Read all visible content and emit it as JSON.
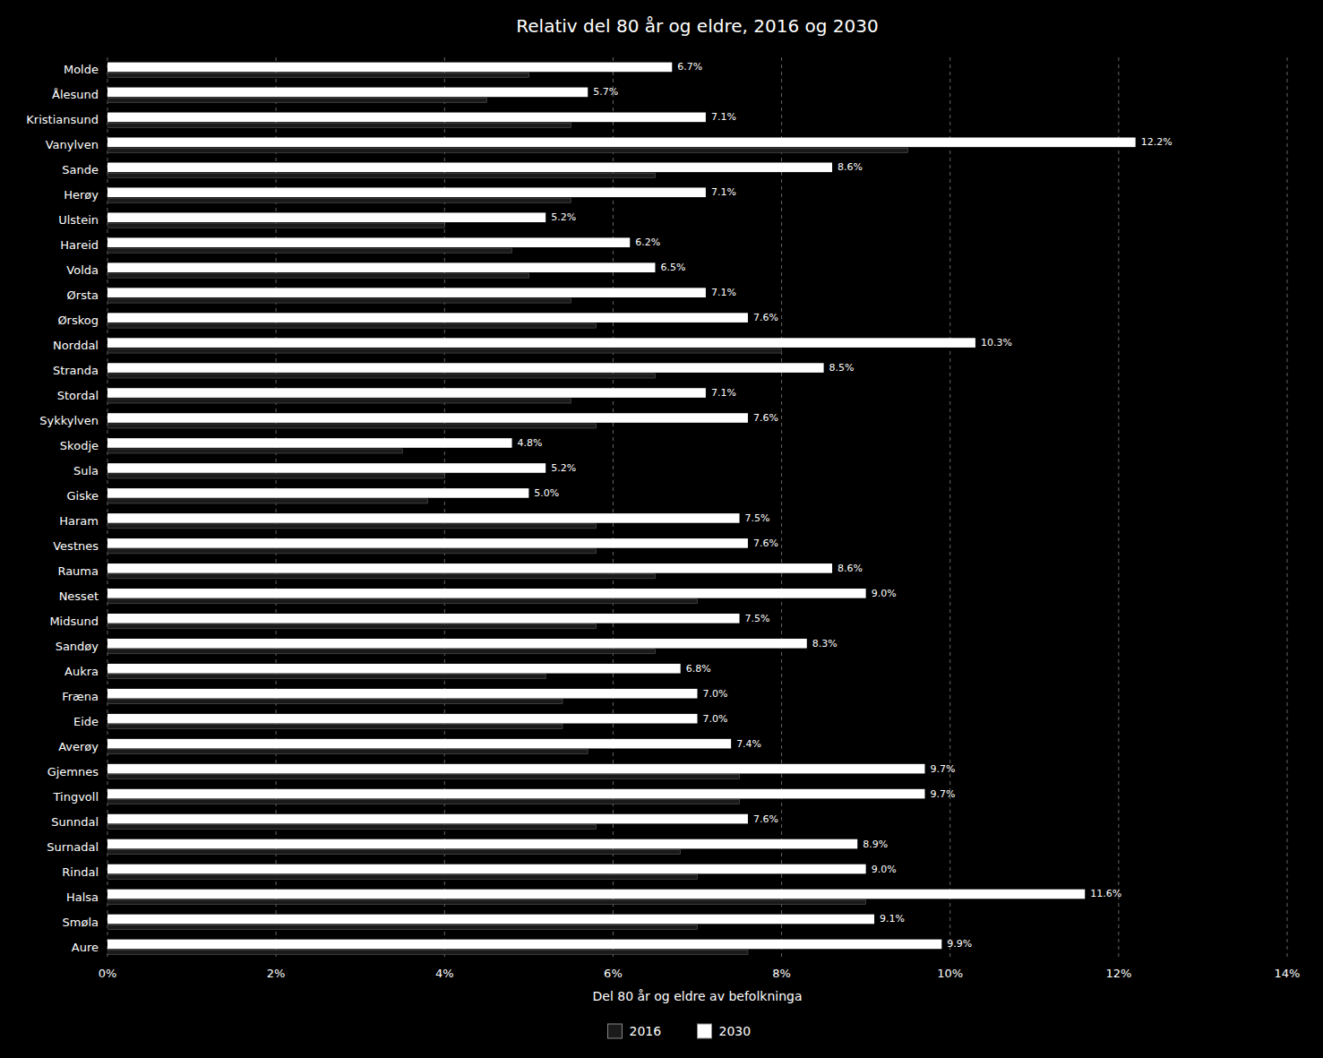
{
  "chart_data": {
    "type": "bar",
    "orientation": "horizontal",
    "title": "Relativ del 80 år og eldre, 2016 og 2030",
    "xlabel": "Del 80 år og eldre av befolkninga",
    "categories": [
      "Molde",
      "Ålesund",
      "Kristiansund",
      "Vanylven",
      "Sande",
      "Herøy",
      "Ulstein",
      "Hareid",
      "Volda",
      "Ørsta",
      "Ørskog",
      "Norddal",
      "Stranda",
      "Stordal",
      "Sykkylven",
      "Skodje",
      "Sula",
      "Giske",
      "Haram",
      "Vestnes",
      "Rauma",
      "Nesset",
      "Midsund",
      "Sandøy",
      "Aukra",
      "Fræna",
      "Eide",
      "Averøy",
      "Gjemnes",
      "Tingvoll",
      "Sunndal",
      "Surnadal",
      "Rindal",
      "Halsa",
      "Smøla",
      "Aure"
    ],
    "series": [
      {
        "name": "2016",
        "color": "#1a1a1a",
        "values": [
          5.0,
          4.5,
          5.5,
          9.5,
          6.5,
          5.5,
          4.0,
          4.8,
          5.0,
          5.5,
          5.8,
          8.0,
          6.5,
          5.5,
          5.8,
          3.5,
          4.0,
          3.8,
          5.8,
          5.8,
          6.5,
          7.0,
          5.8,
          6.5,
          5.2,
          5.4,
          5.4,
          5.7,
          7.5,
          7.5,
          5.8,
          6.8,
          7.0,
          9.0,
          7.0,
          7.6
        ]
      },
      {
        "name": "2030",
        "color": "#ffffff",
        "data_labels": true,
        "values": [
          6.7,
          5.7,
          7.1,
          12.2,
          8.6,
          7.1,
          5.2,
          6.2,
          6.5,
          7.1,
          7.6,
          10.3,
          8.5,
          7.1,
          7.6,
          4.8,
          5.2,
          5.0,
          7.5,
          7.6,
          8.6,
          9.0,
          7.5,
          8.3,
          6.8,
          7.0,
          7.0,
          7.4,
          9.7,
          9.7,
          7.6,
          8.9,
          9.0,
          11.6,
          9.1,
          9.9
        ],
        "value_labels": [
          "6.7%",
          "5.7%",
          "7.1%",
          "12.2%",
          "8.6%",
          "7.1%",
          "5.2%",
          "6.2%",
          "6.5%",
          "7.1%",
          "7.6%",
          "10.3%",
          "8.5%",
          "7.1%",
          "7.6%",
          "4.8%",
          "5.2%",
          "5.0%",
          "7.5%",
          "7.6%",
          "8.6%",
          "9.0%",
          "7.5%",
          "8.3%",
          "6.8%",
          "7.0%",
          "7.0%",
          "7.4%",
          "9.7%",
          "9.7%",
          "7.6%",
          "8.9%",
          "9.0%",
          "11.6%",
          "9.1%",
          "9.9%"
        ]
      }
    ],
    "xlim": [
      0,
      14
    ],
    "xticks": [
      {
        "value": 0,
        "label": "0%"
      },
      {
        "value": 2,
        "label": "2%"
      },
      {
        "value": 4,
        "label": "4%"
      },
      {
        "value": 6,
        "label": "6%"
      },
      {
        "value": 8,
        "label": "8%"
      },
      {
        "value": 10,
        "label": "10%"
      },
      {
        "value": 12,
        "label": "12%"
      },
      {
        "value": 14,
        "label": "14%"
      }
    ],
    "grid": true,
    "legend": "bottom"
  }
}
